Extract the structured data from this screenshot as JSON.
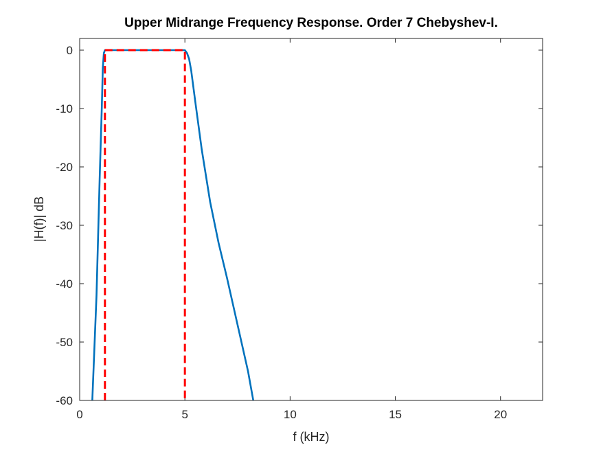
{
  "chart_data": {
    "type": "line",
    "title": "Upper Midrange Frequency Response. Order 7 Chebyshev-I.",
    "xlabel": "f (kHz)",
    "ylabel": "|H(f)| dB",
    "xlim": [
      0,
      22
    ],
    "ylim": [
      -60,
      2
    ],
    "xticks": [
      0,
      5,
      10,
      15,
      20
    ],
    "yticks": [
      0,
      -10,
      -20,
      -30,
      -40,
      -50,
      -60
    ],
    "xtick_labels": [
      "0",
      "5",
      "10",
      "15",
      "20"
    ],
    "ytick_labels": [
      "0",
      "-10",
      "-20",
      "-30",
      "-40",
      "-50",
      "-60"
    ],
    "grid": false,
    "series": [
      {
        "style": "solid",
        "color": "#0072BD",
        "x": [
          0.6,
          0.8,
          0.95,
          1.05,
          1.1,
          1.15,
          1.2,
          1.3,
          2.0,
          3.0,
          4.0,
          4.8,
          5.0,
          5.1,
          5.2,
          5.3,
          5.5,
          5.8,
          6.2,
          6.6,
          7.0,
          7.5,
          8.0,
          8.25
        ],
        "y": [
          -60,
          -42,
          -22,
          -10,
          -3,
          -0.5,
          0,
          0,
          0,
          0,
          0,
          0,
          0,
          -0.5,
          -1.5,
          -3.5,
          -9,
          -17,
          -26,
          -33,
          -39,
          -47,
          -55,
          -60
        ]
      },
      {
        "style": "dashed",
        "color": "#FF0000",
        "x": [
          1.2,
          1.2,
          5.0,
          5.0
        ],
        "y": [
          -60,
          0,
          0,
          -60
        ]
      }
    ]
  }
}
